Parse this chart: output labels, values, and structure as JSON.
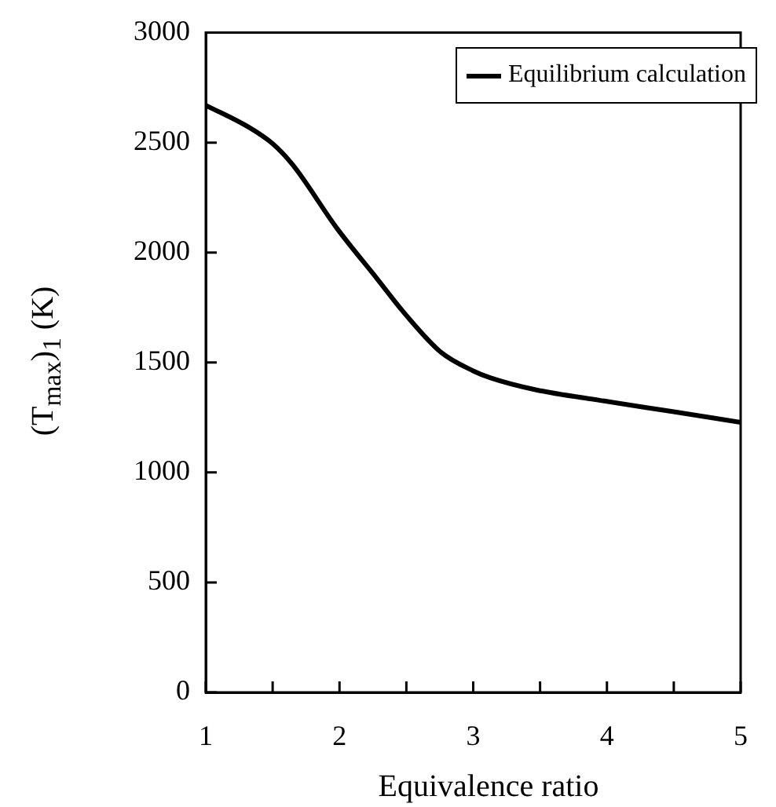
{
  "chart_data": {
    "type": "line",
    "xlabel": "Equivalence ratio",
    "ylabel": "(T$_{max}$)$_{1}$  (K)",
    "x": [
      1,
      1.33,
      1.5,
      1.65,
      1.98,
      2.28,
      2.5,
      2.76,
      3,
      3.13,
      3.46,
      3.98,
      4.5,
      5
    ],
    "series": [
      {
        "name": "Equilibrium calculation",
        "color": "#000000",
        "values": [
          2670,
          2567,
          2495,
          2399,
          2111,
          1882,
          1714,
          1546,
          1462,
          1430,
          1377,
          1325,
          1276,
          1228
        ]
      }
    ],
    "xlim": [
      1,
      5
    ],
    "xticks": [
      1,
      {
        "value": 1.5,
        "label": null
      },
      2,
      {
        "value": 2.5,
        "label": null
      },
      3,
      {
        "value": 3.5,
        "label": null
      },
      4,
      {
        "value": 4.5,
        "label": null
      },
      5
    ],
    "ylim": [
      0,
      3000
    ],
    "yticks": [
      0,
      500,
      1000,
      1500,
      2000,
      2500,
      3000
    ],
    "grid": false,
    "legend": "top right",
    "marker": "none",
    "line_style": "solid"
  }
}
